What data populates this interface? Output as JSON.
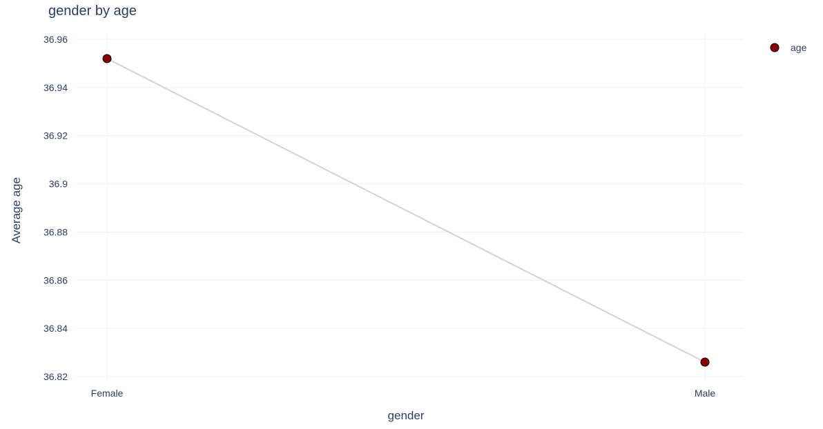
{
  "chart_data": {
    "type": "line",
    "title": "gender by age",
    "xlabel": "gender",
    "ylabel": "Average age",
    "categories": [
      "Female",
      "Male"
    ],
    "series": [
      {
        "name": "age",
        "values": [
          36.952,
          36.826
        ]
      }
    ],
    "ylim": [
      36.82,
      36.96
    ],
    "yticks": [
      "36.82",
      "36.84",
      "36.86",
      "36.88",
      "36.9",
      "36.92",
      "36.94",
      "36.96"
    ],
    "grid": true,
    "legend_position": "top-right",
    "colors": {
      "line": "#d3d3d3",
      "marker_fill": "#8b0000",
      "marker_outline": "#000000",
      "grid": "#ebf0f8",
      "text": "#2a3f5f"
    }
  }
}
